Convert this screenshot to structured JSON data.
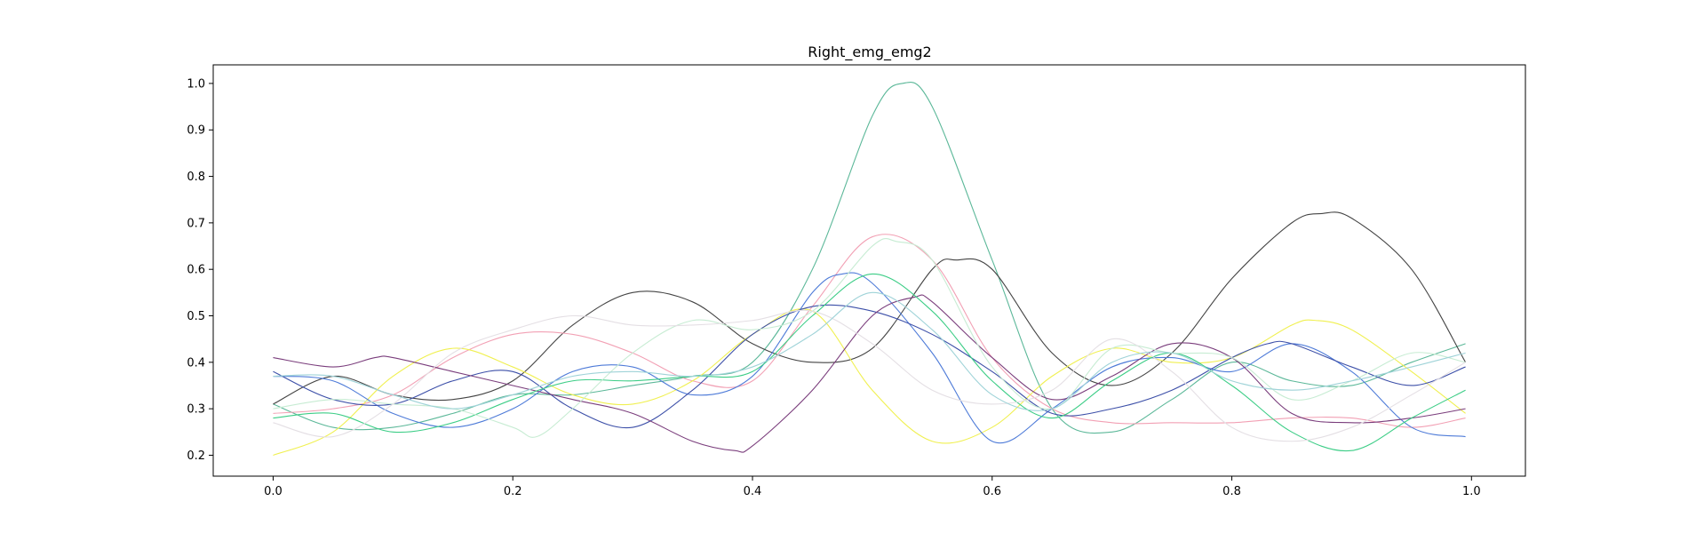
{
  "chart_data": {
    "type": "line",
    "title": "Right_emg_emg2",
    "xlabel": "",
    "ylabel": "",
    "xlim": [
      -0.05,
      1.045
    ],
    "ylim": [
      0.155,
      1.04
    ],
    "xticks": [
      "0.0",
      "0.2",
      "0.4",
      "0.6",
      "0.8",
      "1.0"
    ],
    "yticks": [
      "0.2",
      "0.3",
      "0.4",
      "0.5",
      "0.6",
      "0.7",
      "0.8",
      "0.9",
      "1.0"
    ],
    "grid": false,
    "series": [
      {
        "color": "#5cb899",
        "x": [
          0,
          0.05,
          0.1,
          0.15,
          0.2,
          0.25,
          0.3,
          0.35,
          0.4,
          0.45,
          0.5,
          0.525,
          0.55,
          0.6,
          0.65,
          0.7,
          0.75,
          0.8,
          0.85,
          0.9,
          0.95,
          0.995
        ],
        "y": [
          0.31,
          0.26,
          0.26,
          0.29,
          0.33,
          0.33,
          0.35,
          0.37,
          0.4,
          0.6,
          0.93,
          1.0,
          0.95,
          0.62,
          0.3,
          0.25,
          0.32,
          0.4,
          0.36,
          0.35,
          0.4,
          0.44
        ]
      },
      {
        "color": "#444444",
        "x": [
          0,
          0.05,
          0.1,
          0.15,
          0.2,
          0.25,
          0.3,
          0.35,
          0.4,
          0.45,
          0.5,
          0.55,
          0.57,
          0.6,
          0.65,
          0.7,
          0.75,
          0.8,
          0.85,
          0.875,
          0.9,
          0.95,
          0.995
        ],
        "y": [
          0.31,
          0.37,
          0.33,
          0.32,
          0.36,
          0.48,
          0.55,
          0.53,
          0.44,
          0.4,
          0.43,
          0.6,
          0.62,
          0.6,
          0.42,
          0.35,
          0.42,
          0.58,
          0.7,
          0.72,
          0.71,
          0.6,
          0.4
        ]
      },
      {
        "color": "#f2a0b4",
        "x": [
          0,
          0.05,
          0.1,
          0.15,
          0.2,
          0.25,
          0.3,
          0.35,
          0.4,
          0.45,
          0.5,
          0.55,
          0.6,
          0.65,
          0.7,
          0.75,
          0.8,
          0.85,
          0.9,
          0.95,
          0.995
        ],
        "y": [
          0.29,
          0.3,
          0.33,
          0.41,
          0.46,
          0.46,
          0.42,
          0.36,
          0.36,
          0.52,
          0.67,
          0.62,
          0.41,
          0.3,
          0.27,
          0.27,
          0.27,
          0.28,
          0.28,
          0.26,
          0.28
        ]
      },
      {
        "color": "#f0f050",
        "x": [
          0,
          0.05,
          0.1,
          0.15,
          0.2,
          0.25,
          0.3,
          0.35,
          0.4,
          0.45,
          0.5,
          0.55,
          0.6,
          0.65,
          0.7,
          0.75,
          0.8,
          0.85,
          0.87,
          0.9,
          0.95,
          0.995
        ],
        "y": [
          0.2,
          0.25,
          0.37,
          0.43,
          0.39,
          0.33,
          0.31,
          0.36,
          0.46,
          0.51,
          0.34,
          0.23,
          0.26,
          0.37,
          0.43,
          0.4,
          0.41,
          0.48,
          0.49,
          0.47,
          0.38,
          0.29
        ]
      },
      {
        "color": "#4e7bd8",
        "x": [
          0,
          0.05,
          0.1,
          0.15,
          0.2,
          0.25,
          0.3,
          0.35,
          0.4,
          0.45,
          0.475,
          0.5,
          0.55,
          0.6,
          0.65,
          0.7,
          0.75,
          0.8,
          0.85,
          0.9,
          0.95,
          0.995
        ],
        "y": [
          0.37,
          0.36,
          0.29,
          0.26,
          0.3,
          0.38,
          0.39,
          0.33,
          0.37,
          0.55,
          0.59,
          0.57,
          0.42,
          0.23,
          0.3,
          0.39,
          0.41,
          0.38,
          0.44,
          0.38,
          0.26,
          0.24
        ]
      },
      {
        "color": "#3c4fa8",
        "x": [
          0,
          0.05,
          0.1,
          0.15,
          0.2,
          0.25,
          0.3,
          0.35,
          0.4,
          0.45,
          0.5,
          0.55,
          0.6,
          0.65,
          0.7,
          0.75,
          0.8,
          0.83,
          0.85,
          0.9,
          0.95,
          0.995
        ],
        "y": [
          0.38,
          0.32,
          0.31,
          0.36,
          0.38,
          0.3,
          0.26,
          0.34,
          0.46,
          0.52,
          0.51,
          0.46,
          0.38,
          0.29,
          0.3,
          0.34,
          0.41,
          0.44,
          0.44,
          0.39,
          0.35,
          0.39
        ]
      },
      {
        "color": "#7a3d7c",
        "x": [
          0,
          0.05,
          0.085,
          0.1,
          0.15,
          0.2,
          0.25,
          0.3,
          0.35,
          0.385,
          0.4,
          0.45,
          0.5,
          0.535,
          0.55,
          0.6,
          0.65,
          0.7,
          0.75,
          0.8,
          0.85,
          0.9,
          0.95,
          0.995
        ],
        "y": [
          0.41,
          0.39,
          0.41,
          0.41,
          0.38,
          0.35,
          0.32,
          0.29,
          0.23,
          0.21,
          0.22,
          0.34,
          0.5,
          0.54,
          0.53,
          0.41,
          0.32,
          0.37,
          0.44,
          0.41,
          0.29,
          0.27,
          0.28,
          0.3
        ]
      },
      {
        "color": "#3ccd86",
        "x": [
          0,
          0.05,
          0.1,
          0.15,
          0.2,
          0.25,
          0.3,
          0.35,
          0.4,
          0.45,
          0.5,
          0.55,
          0.6,
          0.65,
          0.7,
          0.75,
          0.8,
          0.85,
          0.9,
          0.95,
          0.995
        ],
        "y": [
          0.28,
          0.29,
          0.25,
          0.27,
          0.32,
          0.36,
          0.36,
          0.37,
          0.38,
          0.5,
          0.59,
          0.51,
          0.36,
          0.28,
          0.36,
          0.42,
          0.35,
          0.25,
          0.21,
          0.28,
          0.34
        ]
      },
      {
        "color": "#c7ecd3",
        "x": [
          0,
          0.05,
          0.1,
          0.15,
          0.2,
          0.22,
          0.25,
          0.3,
          0.35,
          0.4,
          0.45,
          0.5,
          0.52,
          0.55,
          0.6,
          0.65,
          0.7,
          0.75,
          0.8,
          0.85,
          0.9,
          0.95,
          0.995
        ],
        "y": [
          0.3,
          0.32,
          0.31,
          0.3,
          0.26,
          0.24,
          0.3,
          0.42,
          0.49,
          0.47,
          0.51,
          0.65,
          0.66,
          0.62,
          0.39,
          0.3,
          0.43,
          0.42,
          0.41,
          0.32,
          0.36,
          0.42,
          0.4
        ]
      },
      {
        "color": "#e4dfe4",
        "x": [
          0,
          0.05,
          0.1,
          0.15,
          0.2,
          0.25,
          0.3,
          0.35,
          0.4,
          0.45,
          0.5,
          0.55,
          0.6,
          0.65,
          0.7,
          0.75,
          0.8,
          0.85,
          0.9,
          0.95,
          0.995
        ],
        "y": [
          0.27,
          0.24,
          0.31,
          0.42,
          0.47,
          0.5,
          0.48,
          0.48,
          0.49,
          0.51,
          0.44,
          0.34,
          0.31,
          0.34,
          0.45,
          0.38,
          0.26,
          0.23,
          0.26,
          0.33,
          0.4
        ]
      },
      {
        "color": "#9fd3d8",
        "x": [
          0,
          0.05,
          0.1,
          0.15,
          0.2,
          0.25,
          0.3,
          0.35,
          0.4,
          0.45,
          0.5,
          0.55,
          0.6,
          0.65,
          0.7,
          0.75,
          0.8,
          0.85,
          0.9,
          0.95,
          0.995
        ],
        "y": [
          0.37,
          0.37,
          0.33,
          0.3,
          0.33,
          0.37,
          0.38,
          0.37,
          0.39,
          0.46,
          0.55,
          0.47,
          0.33,
          0.3,
          0.4,
          0.42,
          0.36,
          0.34,
          0.36,
          0.39,
          0.42
        ]
      }
    ]
  }
}
